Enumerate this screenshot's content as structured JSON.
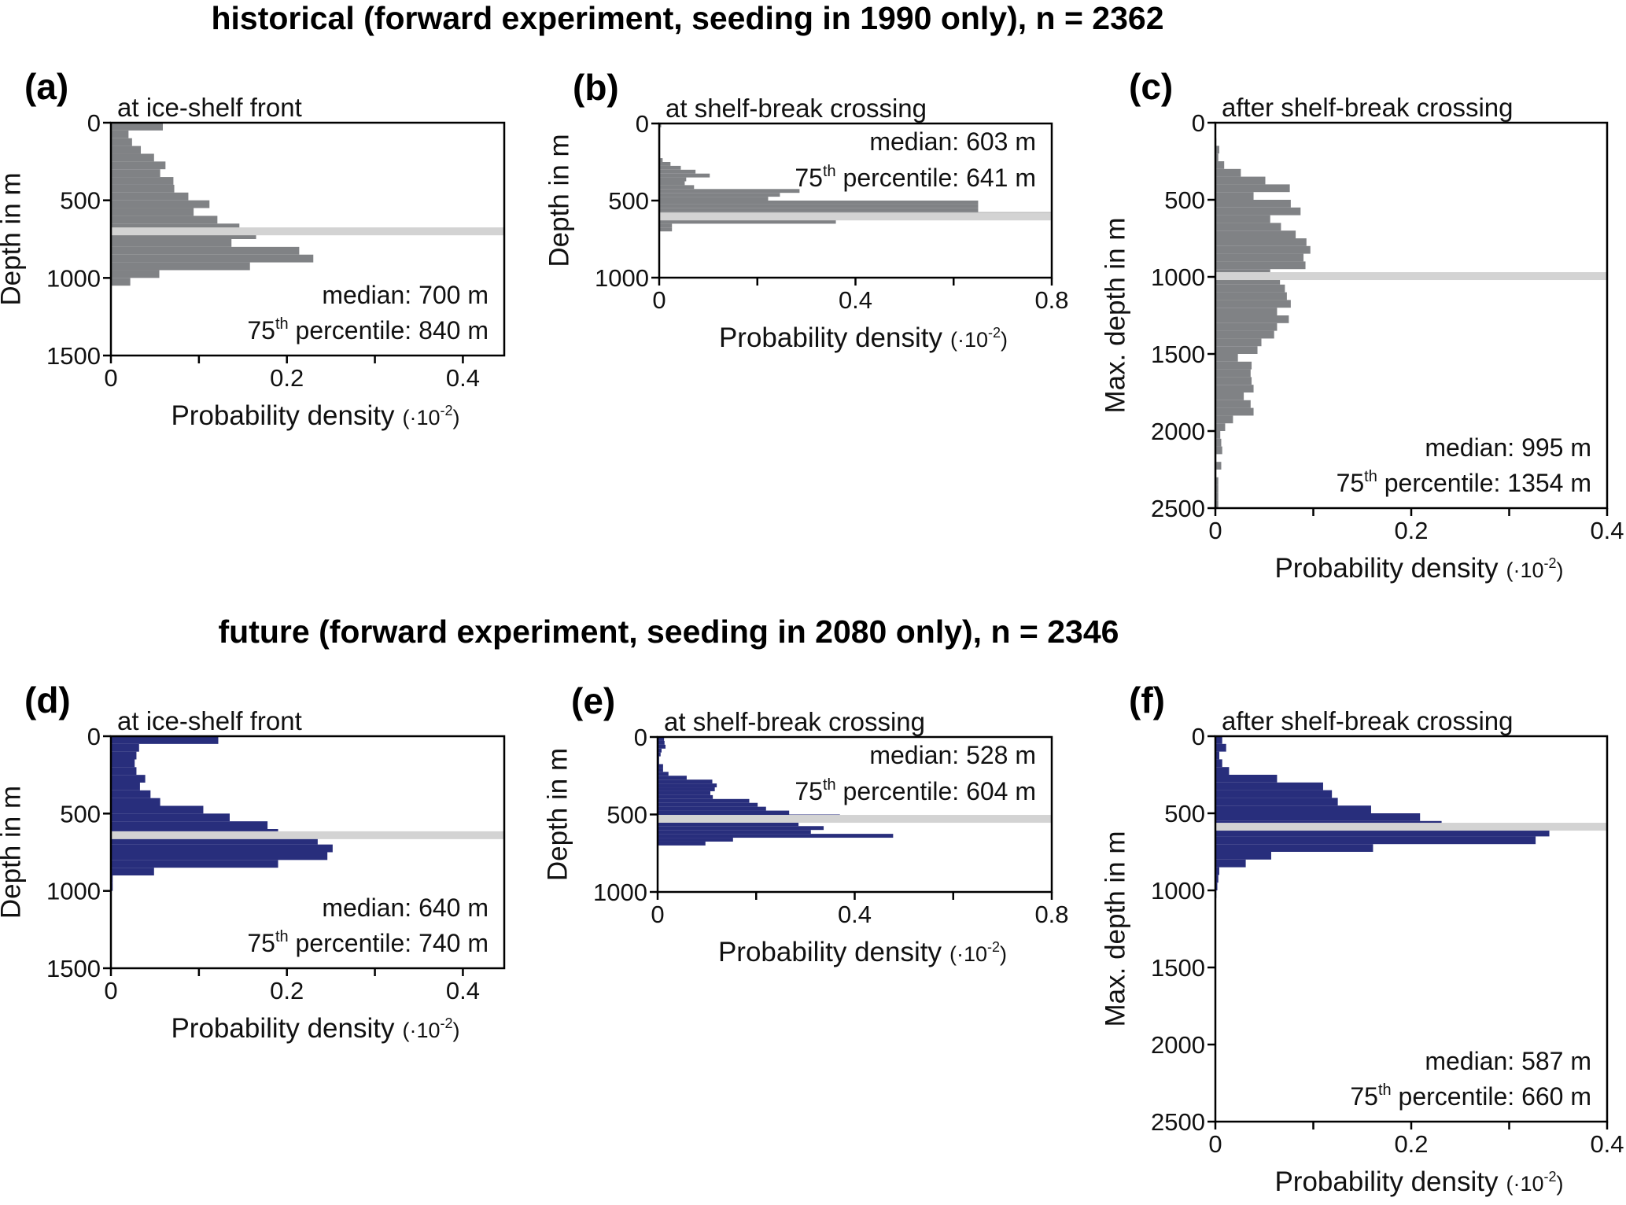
{
  "titles": [
    "historical (forward experiment, seeding in 1990 only), n = 2362",
    "future (forward experiment, seeding in 2080 only), n = 2346"
  ],
  "colors": {
    "historical": "#808285",
    "future": "#282e7c",
    "median_band": "#d3d3d3",
    "axis": "#000000"
  },
  "chart_data": [
    {
      "type": "bar",
      "orientation": "horizontal",
      "panel": "(a)",
      "title": "at ice-shelf front",
      "group": "historical",
      "xlabel": {
        "text": "Probability density",
        "unit_prefix": "(·10",
        "unit_exp": "-2",
        "unit_suffix": ")"
      },
      "ylabel": "Depth in m",
      "xlim": [
        0,
        0.447
      ],
      "ylim": [
        0,
        1500
      ],
      "xtick_labels": [
        "0",
        "0.2",
        "0.4"
      ],
      "ytick_labels": [
        "0",
        "500",
        "1000",
        "1500"
      ],
      "bin_width_m": 50,
      "density": [
        0.059,
        0.02,
        0.024,
        0.034,
        0.049,
        0.062,
        0.056,
        0.071,
        0.072,
        0.088,
        0.112,
        0.094,
        0.121,
        0.146,
        0.165,
        0.137,
        0.214,
        0.23,
        0.158,
        0.055,
        0.022
      ],
      "median_m": 700,
      "annotation": {
        "median": "median: 700 m",
        "p75_num": "75",
        "p75_sup": "th",
        "p75_text": " percentile: 840 m"
      }
    },
    {
      "type": "bar",
      "orientation": "horizontal",
      "panel": "(b)",
      "title": "at shelf-break crossing",
      "group": "historical",
      "xlabel": {
        "text": "Probability density",
        "unit_prefix": "(·10",
        "unit_exp": "-2",
        "unit_suffix": ")"
      },
      "ylabel": "Depth in m",
      "xlim": [
        0,
        0.8
      ],
      "ylim": [
        0,
        1000
      ],
      "xtick_labels": [
        "0",
        "0.4",
        "0.8"
      ],
      "ytick_labels": [
        "0",
        "500",
        "1000"
      ],
      "bin_width_m": 25,
      "density": [
        0.004,
        0.002,
        0.002,
        0.002,
        0.002,
        0.002,
        0.002,
        0.002,
        0.002,
        0.007,
        0.023,
        0.044,
        0.074,
        0.103,
        0.055,
        0.052,
        0.071,
        0.286,
        0.246,
        0.222,
        0.65,
        0.65,
        0.65,
        0.85,
        0.36,
        0.36,
        0.026,
        0.026
      ],
      "median_m": 603,
      "annotation": {
        "median": "median: 603 m",
        "p75_num": "75",
        "p75_sup": "th",
        "p75_text": " percentile: 641 m"
      }
    },
    {
      "type": "bar",
      "orientation": "horizontal",
      "panel": "(c)",
      "title": "after shelf-break crossing",
      "group": "historical",
      "xlabel": {
        "text": "Probability density",
        "unit_prefix": "(·10",
        "unit_exp": "-2",
        "unit_suffix": ")"
      },
      "ylabel": "Max. depth in m",
      "xlim": [
        0,
        0.4
      ],
      "ylim": [
        0,
        2500
      ],
      "xtick_labels": [
        "0",
        "0.2",
        "0.4"
      ],
      "ytick_labels": [
        "0",
        "500",
        "1000",
        "1500",
        "2000",
        "2500"
      ],
      "bin_width_m": 50,
      "density": [
        0,
        0,
        0.001,
        0.004,
        0.003,
        0.009,
        0.026,
        0.051,
        0.076,
        0.039,
        0.077,
        0.087,
        0.056,
        0.067,
        0.082,
        0.093,
        0.097,
        0.09,
        0.092,
        0.056,
        0.066,
        0.071,
        0.073,
        0.077,
        0.063,
        0.075,
        0.063,
        0.06,
        0.047,
        0.043,
        0.023,
        0.037,
        0.036,
        0.037,
        0.039,
        0.029,
        0.036,
        0.039,
        0.018,
        0.01,
        0.005,
        0.006,
        0.007,
        0.001,
        0.006,
        0.001,
        0.003,
        0.003,
        0.003,
        0.003
      ],
      "median_m": 995,
      "annotation": {
        "median": "median: 995 m",
        "p75_num": "75",
        "p75_sup": "th",
        "p75_text": " percentile: 1354 m"
      }
    },
    {
      "type": "bar",
      "orientation": "horizontal",
      "panel": "(d)",
      "title": "at ice-shelf front",
      "group": "future",
      "xlabel": {
        "text": "Probability density",
        "unit_prefix": "(·10",
        "unit_exp": "-2",
        "unit_suffix": ")"
      },
      "ylabel": "Depth in m",
      "xlim": [
        0,
        0.447
      ],
      "ylim": [
        0,
        1500
      ],
      "xtick_labels": [
        "0",
        "0.2",
        "0.4"
      ],
      "ytick_labels": [
        "0",
        "500",
        "1000",
        "1500"
      ],
      "bin_width_m": 50,
      "density": [
        0.122,
        0.032,
        0.029,
        0.027,
        0.029,
        0.039,
        0.033,
        0.045,
        0.056,
        0.105,
        0.135,
        0.178,
        0.19,
        0.235,
        0.252,
        0.246,
        0.19,
        0.049,
        0.002,
        0.002
      ],
      "median_m": 640,
      "annotation": {
        "median": "median: 640 m",
        "p75_num": "75",
        "p75_sup": "th",
        "p75_text": " percentile: 740 m"
      }
    },
    {
      "type": "bar",
      "orientation": "horizontal",
      "panel": "(e)",
      "title": "at shelf-break crossing",
      "group": "future",
      "xlabel": {
        "text": "Probability density",
        "unit_prefix": "(·10",
        "unit_exp": "-2",
        "unit_suffix": ")"
      },
      "ylabel": "Depth in m",
      "xlim": [
        0,
        0.8
      ],
      "ylim": [
        0,
        1000
      ],
      "xtick_labels": [
        "0",
        "0.4",
        "0.8"
      ],
      "ytick_labels": [
        "0",
        "500",
        "1000"
      ],
      "bin_width_m": 25,
      "density": [
        0.013,
        0.014,
        0.016,
        0.008,
        0.006,
        0.003,
        0.003,
        0.011,
        0.011,
        0.022,
        0.059,
        0.111,
        0.12,
        0.116,
        0.107,
        0.112,
        0.186,
        0.203,
        0.22,
        0.267,
        0.37,
        0.37,
        0.286,
        0.337,
        0.311,
        0.478,
        0.153,
        0.097
      ],
      "median_m": 528,
      "annotation": {
        "median": "median: 528 m",
        "p75_num": "75",
        "p75_sup": "th",
        "p75_text": " percentile: 604 m"
      }
    },
    {
      "type": "bar",
      "orientation": "horizontal",
      "panel": "(f)",
      "title": "after shelf-break crossing",
      "group": "future",
      "xlabel": {
        "text": "Probability density",
        "unit_prefix": "(·10",
        "unit_exp": "-2",
        "unit_suffix": ")"
      },
      "ylabel": "Max. depth in m",
      "xlim": [
        0,
        0.4
      ],
      "ylim": [
        0,
        2500
      ],
      "xtick_labels": [
        "0",
        "0.2",
        "0.4"
      ],
      "ytick_labels": [
        "0",
        "500",
        "1000",
        "1500",
        "2000",
        "2500"
      ],
      "bin_width_m": 50,
      "density": [
        0.007,
        0.011,
        0.004,
        0.007,
        0.014,
        0.063,
        0.11,
        0.119,
        0.125,
        0.159,
        0.209,
        0.231,
        0.341,
        0.327,
        0.161,
        0.057,
        0.031,
        0.004,
        0.003,
        0.002,
        0.001
      ],
      "median_m": 587,
      "annotation": {
        "median": "median: 587 m",
        "p75_num": "75",
        "p75_sup": "th",
        "p75_text": " percentile: 660 m"
      }
    }
  ]
}
